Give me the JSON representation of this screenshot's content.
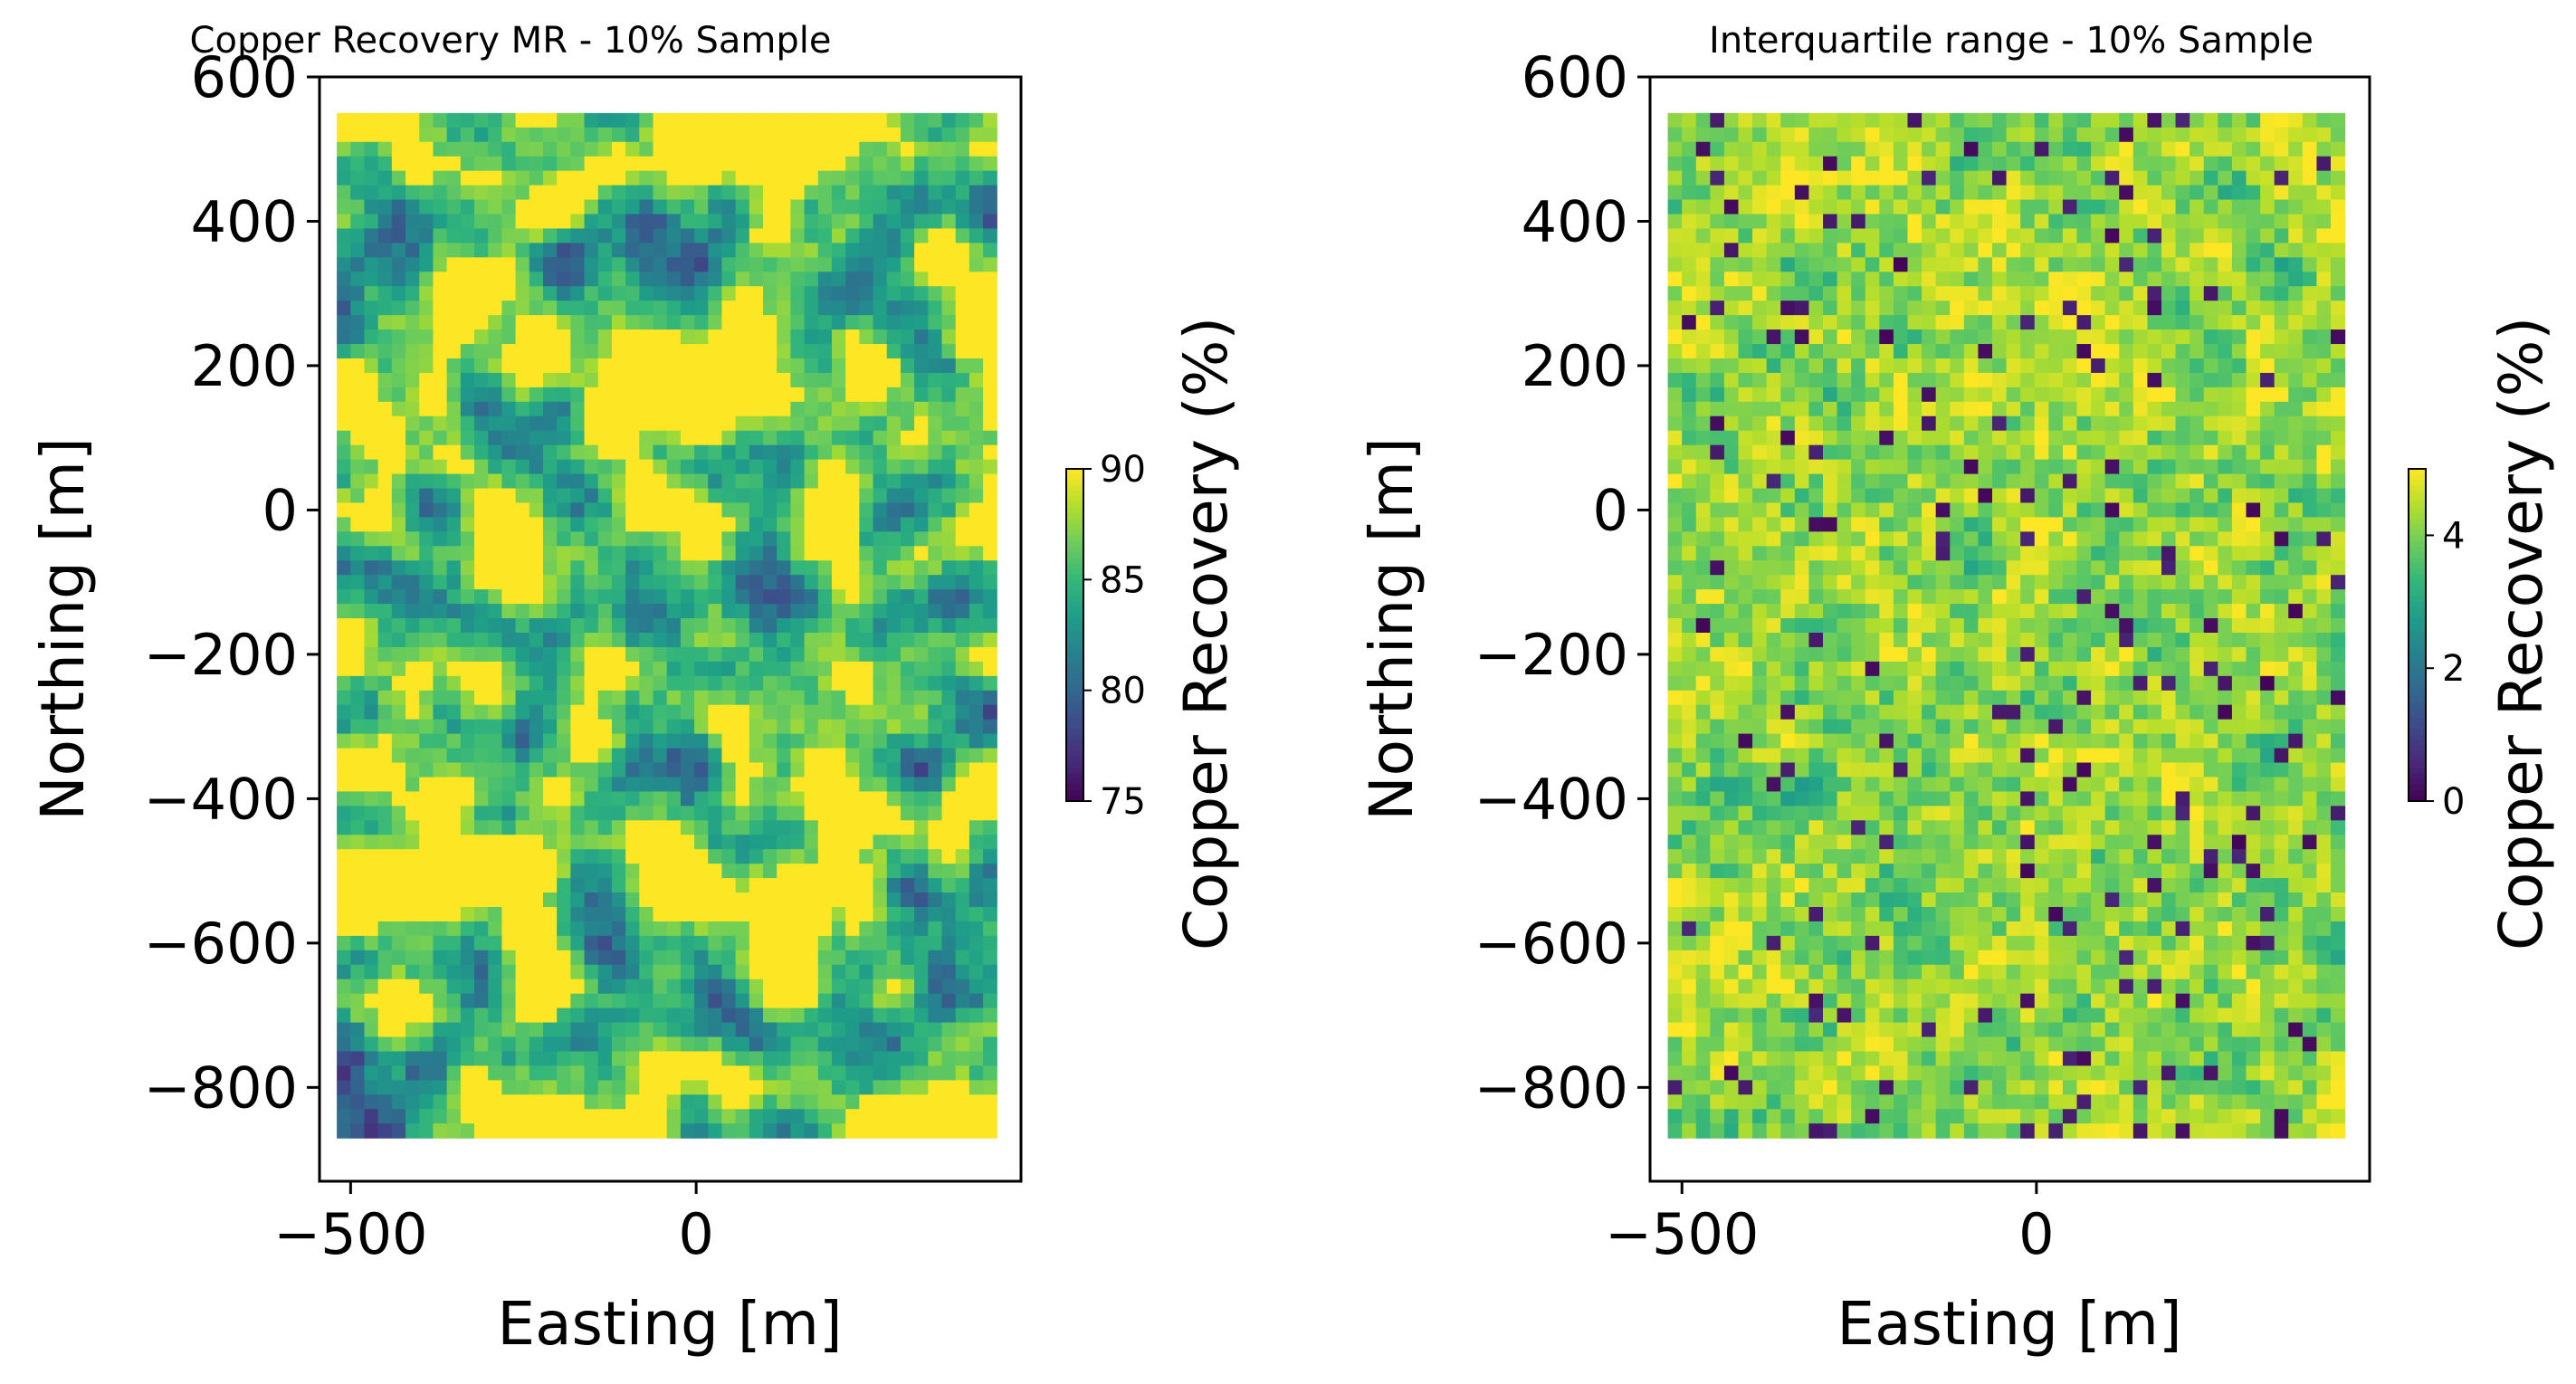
{
  "chart_data": [
    {
      "type": "heatmap",
      "title": "Copper Recovery MR - 10% Sample",
      "xlabel": "Easting [m]",
      "ylabel": "Northing [m]",
      "xlim": [
        -545,
        470
      ],
      "ylim": [
        -930,
        600
      ],
      "xticks": [
        -500,
        0
      ],
      "yticks": [
        600,
        400,
        200,
        0,
        -200,
        -400,
        -600,
        -800
      ],
      "xtick_labels": [
        "−500",
        "0"
      ],
      "ytick_labels": [
        "600",
        "400",
        "200",
        "0",
        "−200",
        "−400",
        "−600",
        "−800"
      ],
      "grid_extent": {
        "x": [
          -520,
          435
        ],
        "y": [
          -870,
          550
        ]
      },
      "grid_shape": {
        "cols": 48,
        "rows": 71
      },
      "colormap": "viridis",
      "pattern": "recovery",
      "seed": 17,
      "colorbar": {
        "label": "Copper Recovery (%)",
        "min": 75,
        "max": 90,
        "ticks": [
          75,
          80,
          85,
          90
        ],
        "tick_labels": [
          "75",
          "80",
          "85",
          "90"
        ]
      }
    },
    {
      "type": "heatmap",
      "title": "Interquartile range - 10% Sample",
      "xlabel": "Easting [m]",
      "ylabel": "Northing [m]",
      "xlim": [
        -545,
        470
      ],
      "ylim": [
        -930,
        600
      ],
      "xticks": [
        -500,
        0
      ],
      "yticks": [
        600,
        400,
        200,
        0,
        -200,
        -400,
        -600,
        -800
      ],
      "xtick_labels": [
        "−500",
        "0"
      ],
      "ytick_labels": [
        "600",
        "400",
        "200",
        "0",
        "−200",
        "−400",
        "−600",
        "−800"
      ],
      "grid_extent": {
        "x": [
          -520,
          435
        ],
        "y": [
          -870,
          550
        ]
      },
      "grid_shape": {
        "cols": 48,
        "rows": 71
      },
      "colormap": "viridis",
      "pattern": "iqr",
      "seed": 41,
      "colorbar": {
        "label": "Copper Recovery (%)",
        "min": 0,
        "max": 5,
        "ticks": [
          0,
          2,
          4
        ],
        "tick_labels": [
          "0",
          "2",
          "4"
        ]
      }
    }
  ]
}
